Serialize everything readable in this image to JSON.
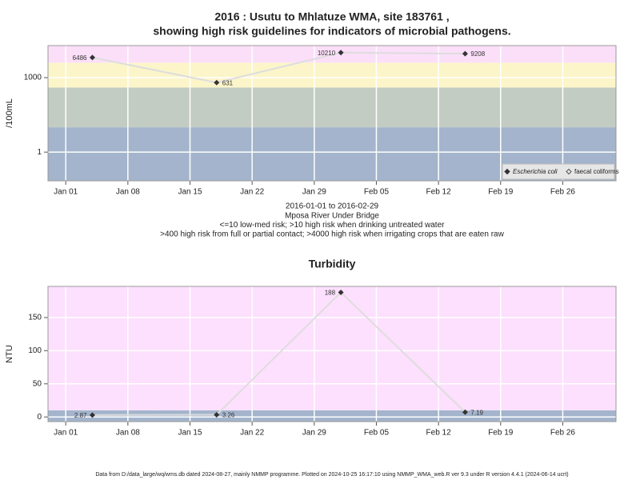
{
  "chart_data": [
    {
      "type": "line",
      "title": [
        "2016 : Usutu to Mhlatuze WMA, site 183761 ,",
        "showing high risk guidelines for indicators of microbial pathogens."
      ],
      "notes": [
        "2016-01-01 to 2016-02-29",
        "Mposa River Under Bridge",
        "<=10 low-med risk; >10 high risk when drinking untreated water",
        ">400 high risk from full or partial contact; >4000 high risk when irrigating crops that are eaten raw"
      ],
      "ylabel": "/100mL",
      "log_y": true,
      "x": [
        "2016-01-04",
        "2016-01-18",
        "2016-02-01",
        "2016-02-15"
      ],
      "series": [
        {
          "name": "Escherichia coli",
          "color": "#333333",
          "line_color": "#dddddd",
          "values": [
            6486,
            631,
            10210,
            9208
          ]
        },
        {
          "name": "faecal coliforms",
          "color": "#555555",
          "line_color": "#dddddd",
          "values": [
            null,
            null,
            null,
            null
          ]
        }
      ],
      "bands": [
        {
          "to": 10,
          "color": "#a3b4cc"
        },
        {
          "to": 400,
          "color": "#c3ccc2"
        },
        {
          "to": 4000,
          "color": "#fcf5c9"
        },
        {
          "color": "#fbdff9"
        }
      ],
      "xlim": [
        "2015-12-30",
        "2016-03-03"
      ],
      "xticks": [
        {
          "value": "2016-01-01",
          "label": "Jan 01"
        },
        {
          "value": "2016-01-08",
          "label": "Jan 08"
        },
        {
          "value": "2016-01-15",
          "label": "Jan 15"
        },
        {
          "value": "2016-01-22",
          "label": "Jan 22"
        },
        {
          "value": "2016-01-29",
          "label": "Jan 29"
        },
        {
          "value": "2016-02-05",
          "label": "Feb 05"
        },
        {
          "value": "2016-02-12",
          "label": "Feb 12"
        },
        {
          "value": "2016-02-19",
          "label": "Feb 19"
        },
        {
          "value": "2016-02-26",
          "label": "Feb 26"
        }
      ],
      "ylim": [
        0.07,
        19500
      ],
      "yticks": [
        1,
        1000
      ],
      "grid": true,
      "legend": "bottom-right"
    },
    {
      "type": "line",
      "title": [
        "Turbidity"
      ],
      "ylabel": "NTU",
      "log_y": false,
      "x": [
        "2016-01-04",
        "2016-01-18",
        "2016-02-01",
        "2016-02-15"
      ],
      "series": [
        {
          "name": "Turbidity",
          "color": "#333333",
          "line_color": "#dddddd",
          "values": [
            2.87,
            3.26,
            188,
            7.19
          ]
        }
      ],
      "bands": [
        {
          "to": 10,
          "color": "#a3b4cc"
        },
        {
          "color": "#fde0fd"
        }
      ],
      "xlim": [
        "2015-12-30",
        "2016-03-03"
      ],
      "xticks": [
        {
          "value": "2016-01-01",
          "label": "Jan 01"
        },
        {
          "value": "2016-01-08",
          "label": "Jan 08"
        },
        {
          "value": "2016-01-15",
          "label": "Jan 15"
        },
        {
          "value": "2016-01-22",
          "label": "Jan 22"
        },
        {
          "value": "2016-01-29",
          "label": "Jan 29"
        },
        {
          "value": "2016-02-05",
          "label": "Feb 05"
        },
        {
          "value": "2016-02-12",
          "label": "Feb 12"
        },
        {
          "value": "2016-02-19",
          "label": "Feb 19"
        },
        {
          "value": "2016-02-26",
          "label": "Feb 26"
        }
      ],
      "ylim": [
        -7,
        197
      ],
      "yticks": [
        0,
        50,
        100,
        150
      ],
      "grid": true
    }
  ],
  "footer": "Data from D:/data_large/wq/wms.db dated 2024-08-27, mainly NMMP programme. Plotted on 2024-10-25 16:17:10 using NMMP_WMA_web.R ver 9.3 under R version 4.4.1 (2024-06-14 ucrt)"
}
